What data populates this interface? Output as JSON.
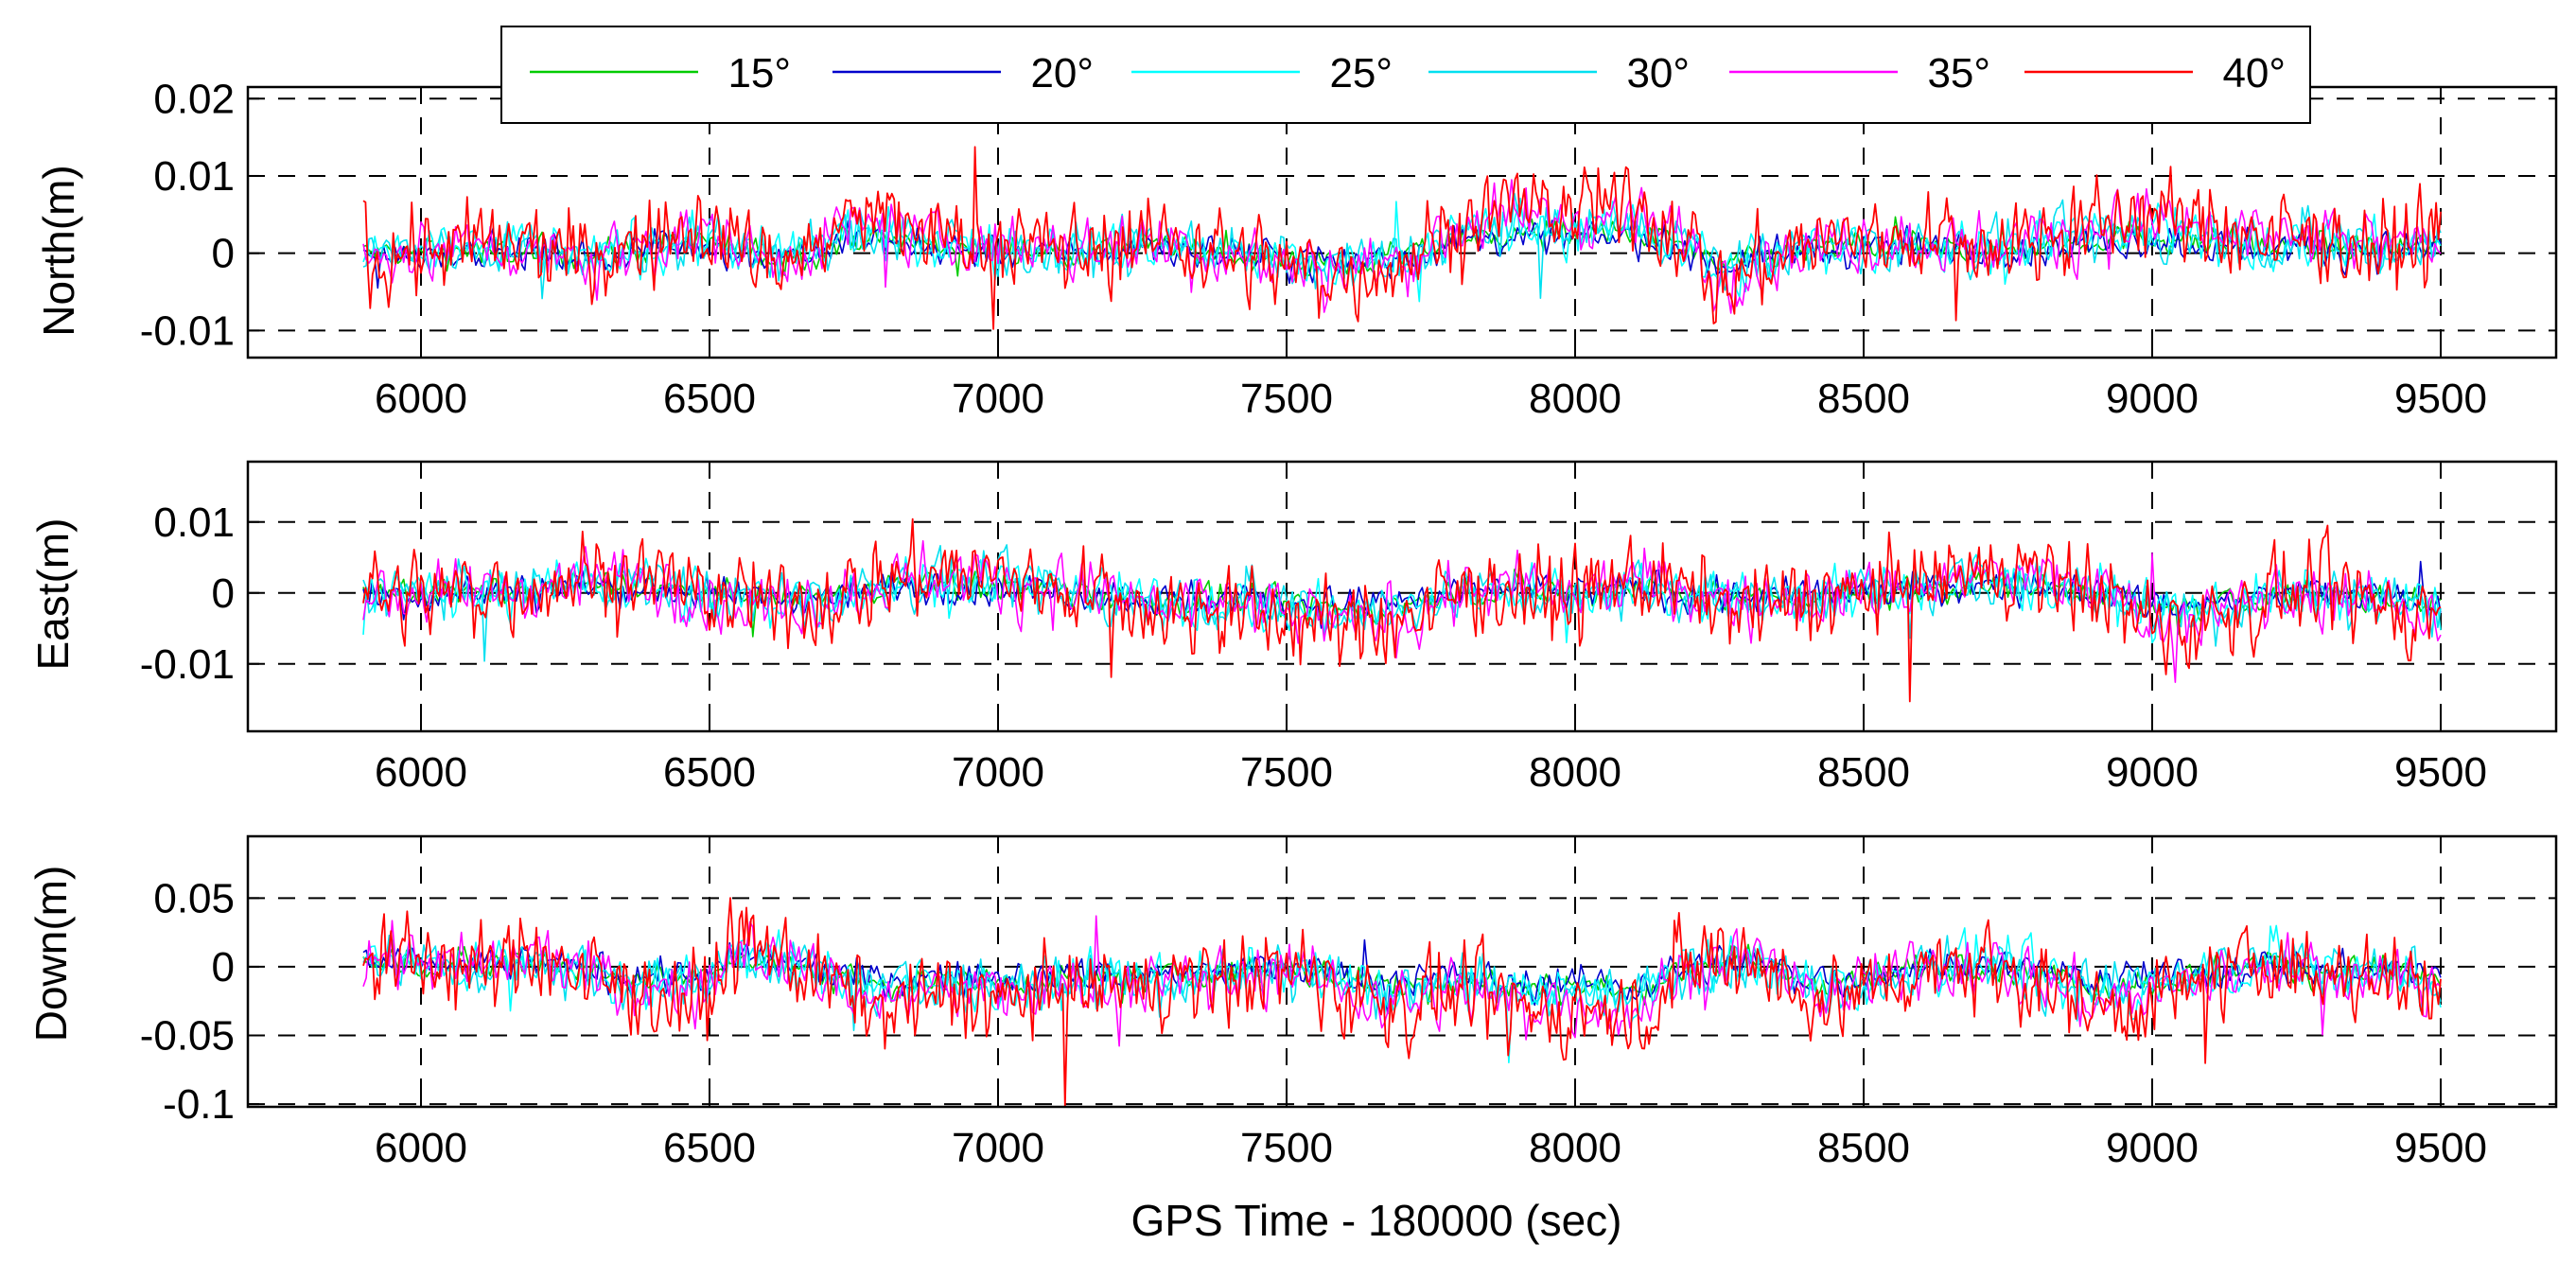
{
  "chart_data": {
    "type": "line",
    "figure_xlabel": "GPS Time - 180000 (sec)",
    "x_range": [
      5900,
      9500
    ],
    "colors": {
      "15°": "#00cc00",
      "20°": "#0000cc",
      "25°": "#00ffff",
      "30°": "#00e0f0",
      "35°": "#ff00ff",
      "40°": "#ff0000"
    },
    "legend": {
      "placement": "top",
      "entries": [
        "15°",
        "20°",
        "25°",
        "30°",
        "35°",
        "40°"
      ]
    },
    "panels": [
      {
        "id": "north",
        "ylabel": "North(m)",
        "xlim": [
          5700,
          9700
        ],
        "ylim": [
          -0.0135,
          0.0215
        ],
        "xticks": [
          6000,
          6500,
          7000,
          7500,
          8000,
          8500,
          9000,
          9500
        ],
        "xtick_labels": [
          "6000",
          "6500",
          "7000",
          "7500",
          "8000",
          "8500",
          "9000",
          "9500"
        ],
        "yticks": [
          0.02,
          0.01,
          0,
          -0.01
        ],
        "ytick_labels": [
          "0.02",
          "0.01",
          "0",
          "-0.01"
        ],
        "series_note": "six dense GPS error time series (approx. profile values at 100 s intervals for the 40° series)",
        "profile_40": [
          [
            5900,
            0
          ],
          [
            6000,
            0
          ],
          [
            6100,
            0.001
          ],
          [
            6200,
            0.0005
          ],
          [
            6300,
            -0.001
          ],
          [
            6400,
            0.002
          ],
          [
            6500,
            0.003
          ],
          [
            6600,
            -0.001
          ],
          [
            6700,
            0.001
          ],
          [
            6750,
            0.005
          ],
          [
            6800,
            0.004
          ],
          [
            6900,
            0.002
          ],
          [
            7000,
            0.001
          ],
          [
            7100,
            0.0005
          ],
          [
            7200,
            0.001
          ],
          [
            7300,
            0.002
          ],
          [
            7400,
            0
          ],
          [
            7500,
            -0.002
          ],
          [
            7600,
            -0.003
          ],
          [
            7700,
            -0.001
          ],
          [
            7800,
            0.004
          ],
          [
            7900,
            0.006
          ],
          [
            8000,
            0.005
          ],
          [
            8100,
            0.006
          ],
          [
            8200,
            0.002
          ],
          [
            8250,
            -0.005
          ],
          [
            8300,
            -0.002
          ],
          [
            8400,
            0.001
          ],
          [
            8500,
            0.002
          ],
          [
            8600,
            0.002
          ],
          [
            8700,
            0.001
          ],
          [
            8800,
            0.002
          ],
          [
            8900,
            0.004
          ],
          [
            9000,
            0.005
          ],
          [
            9100,
            0.003
          ],
          [
            9200,
            0.002
          ],
          [
            9300,
            0.002
          ],
          [
            9400,
            0.001
          ],
          [
            9500,
            0.002
          ]
        ]
      },
      {
        "id": "east",
        "ylabel": "East(m)",
        "xlim": [
          5700,
          9700
        ],
        "ylim": [
          -0.0195,
          0.0185
        ],
        "xticks": [
          6000,
          6500,
          7000,
          7500,
          8000,
          8500,
          9000,
          9500
        ],
        "xtick_labels": [
          "6000",
          "6500",
          "7000",
          "7500",
          "8000",
          "8500",
          "9000",
          "9500"
        ],
        "yticks": [
          0.01,
          0,
          -0.01
        ],
        "ytick_labels": [
          "0.01",
          "0",
          "-0.01"
        ],
        "series_note": "six dense GPS error time series (approx. profile values at 100 s intervals for the 40° series)",
        "profile_40": [
          [
            5900,
            0
          ],
          [
            6000,
            -0.0005
          ],
          [
            6100,
            0
          ],
          [
            6200,
            0.001
          ],
          [
            6300,
            0.003
          ],
          [
            6400,
            0.002
          ],
          [
            6500,
            -0.001
          ],
          [
            6600,
            -0.002
          ],
          [
            6700,
            -0.001
          ],
          [
            6800,
            0.002
          ],
          [
            6900,
            0.003
          ],
          [
            7000,
            0.002
          ],
          [
            7100,
            0.001
          ],
          [
            7200,
            -0.001
          ],
          [
            7300,
            -0.003
          ],
          [
            7400,
            -0.002
          ],
          [
            7500,
            -0.004
          ],
          [
            7600,
            -0.005
          ],
          [
            7700,
            -0.004
          ],
          [
            7800,
            0
          ],
          [
            7900,
            0.001
          ],
          [
            8000,
            -0.001
          ],
          [
            8100,
            0.002
          ],
          [
            8200,
            0
          ],
          [
            8300,
            -0.002
          ],
          [
            8400,
            -0.001
          ],
          [
            8500,
            0
          ],
          [
            8600,
            0.001
          ],
          [
            8700,
            0.003
          ],
          [
            8800,
            0.002
          ],
          [
            8900,
            0.001
          ],
          [
            9000,
            -0.005
          ],
          [
            9100,
            -0.004
          ],
          [
            9200,
            -0.001
          ],
          [
            9300,
            0
          ],
          [
            9400,
            -0.002
          ],
          [
            9500,
            -0.003
          ]
        ]
      },
      {
        "id": "down",
        "ylabel": "Down(m)",
        "xlim": [
          5700,
          9700
        ],
        "ylim": [
          -0.102,
          0.095
        ],
        "xticks": [
          6000,
          6500,
          7000,
          7500,
          8000,
          8500,
          9000,
          9500
        ],
        "xtick_labels": [
          "6000",
          "6500",
          "7000",
          "7500",
          "8000",
          "8500",
          "9000",
          "9500"
        ],
        "yticks": [
          0.05,
          0,
          -0.05,
          -0.1
        ],
        "ytick_labels": [
          "0.05",
          "0",
          "-0.05",
          "-0.1"
        ],
        "series_note": "six dense GPS error time series (approx. profile values at 100 s intervals for the 40° series)",
        "profile_40": [
          [
            5900,
            0.01
          ],
          [
            6000,
            0.005
          ],
          [
            6100,
            -0.005
          ],
          [
            6200,
            0.01
          ],
          [
            6300,
            -0.01
          ],
          [
            6400,
            -0.02
          ],
          [
            6500,
            -0.02
          ],
          [
            6550,
            0.02
          ],
          [
            6600,
            0.01
          ],
          [
            6700,
            -0.01
          ],
          [
            6800,
            -0.03
          ],
          [
            6900,
            -0.02
          ],
          [
            7000,
            -0.025
          ],
          [
            7100,
            -0.02
          ],
          [
            7200,
            -0.015
          ],
          [
            7300,
            -0.015
          ],
          [
            7400,
            -0.01
          ],
          [
            7500,
            0
          ],
          [
            7600,
            -0.02
          ],
          [
            7700,
            -0.03
          ],
          [
            7800,
            -0.02
          ],
          [
            7900,
            -0.035
          ],
          [
            8000,
            -0.03
          ],
          [
            8100,
            -0.04
          ],
          [
            8200,
            0
          ],
          [
            8300,
            0.01
          ],
          [
            8400,
            -0.025
          ],
          [
            8500,
            -0.02
          ],
          [
            8600,
            0
          ],
          [
            8700,
            0.005
          ],
          [
            8800,
            -0.01
          ],
          [
            8900,
            -0.03
          ],
          [
            9000,
            -0.025
          ],
          [
            9100,
            -0.01
          ],
          [
            9200,
            0.005
          ],
          [
            9300,
            -0.01
          ],
          [
            9400,
            -0.005
          ],
          [
            9500,
            -0.02
          ]
        ]
      }
    ]
  }
}
